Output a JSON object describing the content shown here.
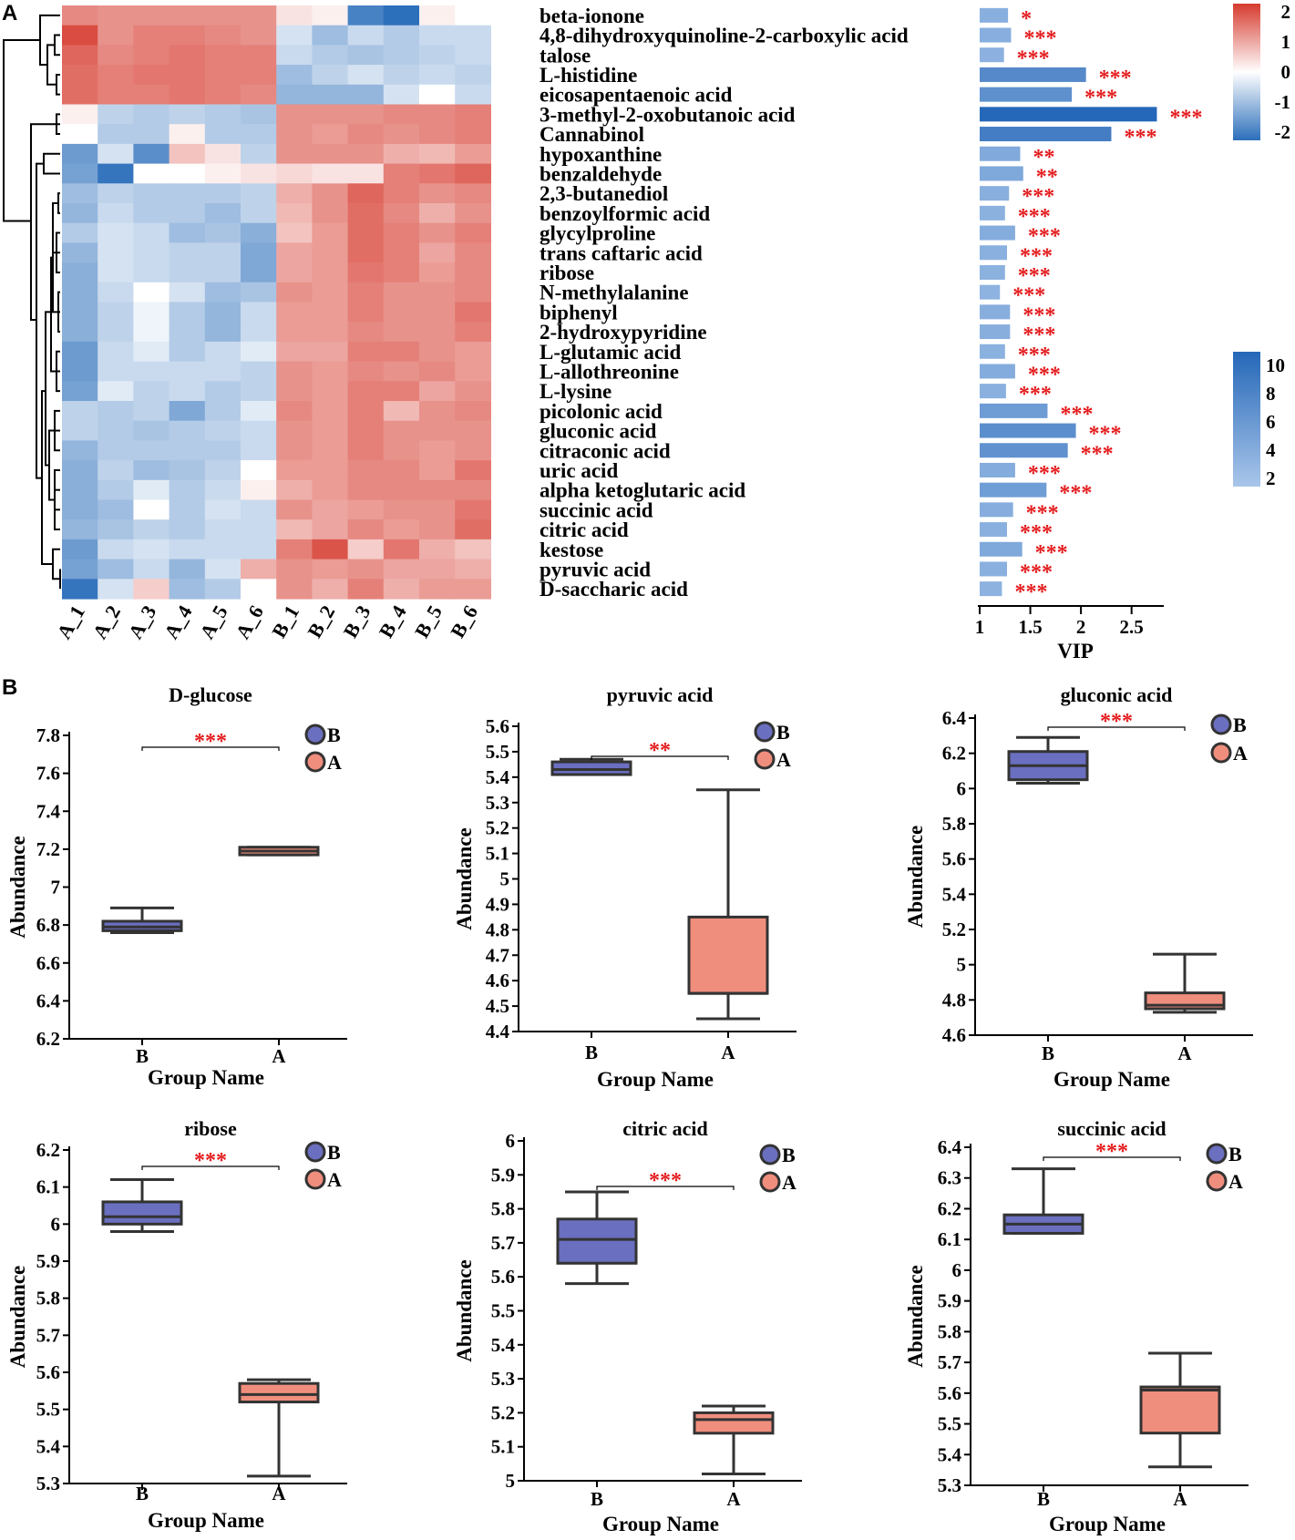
{
  "figure": {
    "panel_a_label": "A",
    "panel_b_label": "B"
  },
  "chart_data": [
    {
      "type": "heatmap",
      "samples": [
        "A_1",
        "A_2",
        "A_3",
        "A_4",
        "A_5",
        "A_6",
        "B_1",
        "B_2",
        "B_3",
        "B_4",
        "B_5",
        "B_6"
      ],
      "rows": [
        {
          "name": "beta-ionone",
          "values": [
            1.1,
            1.0,
            1.0,
            1.0,
            1.0,
            1.0,
            0.2,
            0.1,
            -1.7,
            -2.0,
            0.1,
            0.0
          ],
          "vip": 1.28,
          "sig": "*"
        },
        {
          "name": "4,8-dihydroxyquinoline-2-carboxylic acid",
          "values": [
            1.8,
            1.0,
            1.2,
            1.2,
            1.1,
            1.0,
            -0.3,
            -0.8,
            -0.4,
            -0.6,
            -0.4,
            -0.4
          ],
          "vip": 1.31,
          "sig": "***"
        },
        {
          "name": "talose",
          "values": [
            1.5,
            1.1,
            1.2,
            1.3,
            1.2,
            1.2,
            -0.4,
            -0.6,
            -0.7,
            -0.6,
            -0.5,
            -0.4
          ],
          "vip": 1.24,
          "sig": "***"
        },
        {
          "name": "L-histidine",
          "values": [
            1.4,
            1.2,
            1.3,
            1.3,
            1.2,
            1.2,
            -0.8,
            -0.5,
            -0.3,
            -0.5,
            -0.4,
            -0.5
          ],
          "vip": 2.05,
          "sig": "***"
        },
        {
          "name": "eicosapentaenoic acid",
          "values": [
            1.4,
            1.2,
            1.2,
            1.3,
            1.2,
            1.1,
            -0.9,
            -0.9,
            -0.9,
            -0.3,
            0.0,
            -0.4
          ],
          "vip": 1.91,
          "sig": "***"
        },
        {
          "name": "3-methyl-2-oxobutanoic acid",
          "values": [
            0.1,
            -0.5,
            -0.6,
            -0.5,
            -0.6,
            -0.7,
            1.0,
            1.0,
            1.0,
            1.1,
            1.1,
            1.2
          ],
          "vip": 2.75,
          "sig": "***"
        },
        {
          "name": "Cannabinol",
          "values": [
            0.0,
            -0.6,
            -0.6,
            0.1,
            -0.6,
            -0.6,
            1.0,
            0.9,
            1.1,
            1.0,
            1.1,
            1.2
          ],
          "vip": 2.3,
          "sig": "***"
        },
        {
          "name": "hypoxanthine",
          "values": [
            -1.3,
            -0.3,
            -1.5,
            0.5,
            0.2,
            -0.5,
            1.0,
            1.0,
            1.0,
            0.7,
            0.6,
            0.9
          ],
          "vip": 1.4,
          "sig": "**"
        },
        {
          "name": "benzaldehyde",
          "values": [
            -1.2,
            -1.9,
            0.0,
            0.0,
            0.1,
            0.2,
            0.3,
            0.2,
            0.2,
            1.2,
            1.3,
            1.5
          ],
          "vip": 1.43,
          "sig": "**"
        },
        {
          "name": "2,3-butanediol",
          "values": [
            -0.8,
            -0.5,
            -0.6,
            -0.6,
            -0.6,
            -0.5,
            0.7,
            1.0,
            1.5,
            1.2,
            1.0,
            1.1
          ],
          "vip": 1.29,
          "sig": "***"
        },
        {
          "name": "benzoylformic acid",
          "values": [
            -0.9,
            -0.4,
            -0.6,
            -0.6,
            -0.8,
            -0.5,
            0.6,
            1.0,
            1.4,
            1.1,
            0.7,
            1.0
          ],
          "vip": 1.25,
          "sig": "***"
        },
        {
          "name": "glycylproline",
          "values": [
            -0.6,
            -0.3,
            -0.4,
            -0.8,
            -0.7,
            -1.0,
            0.5,
            0.9,
            1.4,
            1.2,
            1.0,
            1.2
          ],
          "vip": 1.35,
          "sig": "***"
        },
        {
          "name": "trans caftaric acid",
          "values": [
            -0.9,
            -0.3,
            -0.4,
            -0.5,
            -0.5,
            -1.1,
            0.8,
            0.9,
            1.4,
            1.2,
            0.8,
            1.1
          ],
          "vip": 1.27,
          "sig": "***"
        },
        {
          "name": "ribose",
          "values": [
            -1.0,
            -0.3,
            -0.4,
            -0.5,
            -0.5,
            -1.1,
            0.8,
            0.9,
            1.3,
            1.2,
            0.9,
            1.1
          ],
          "vip": 1.25,
          "sig": "***"
        },
        {
          "name": "N-methylalanine",
          "values": [
            -1.0,
            -0.4,
            0.0,
            -0.3,
            -0.8,
            -0.7,
            1.0,
            0.9,
            1.2,
            1.0,
            1.0,
            1.1
          ],
          "vip": 1.2,
          "sig": "***"
        },
        {
          "name": "biphenyl",
          "values": [
            -1.0,
            -0.5,
            -0.1,
            -0.6,
            -0.9,
            -0.4,
            0.9,
            0.9,
            1.2,
            1.0,
            1.0,
            1.3
          ],
          "vip": 1.3,
          "sig": "***"
        },
        {
          "name": "2-hydroxypyridine",
          "values": [
            -1.0,
            -0.5,
            -0.1,
            -0.6,
            -0.9,
            -0.4,
            0.9,
            0.9,
            1.1,
            1.0,
            1.0,
            1.2
          ],
          "vip": 1.3,
          "sig": "***"
        },
        {
          "name": "L-glutamic acid",
          "values": [
            -1.3,
            -0.4,
            -0.2,
            -0.6,
            -0.4,
            -0.2,
            0.8,
            0.8,
            1.2,
            1.2,
            1.0,
            0.9
          ],
          "vip": 1.25,
          "sig": "***"
        },
        {
          "name": "L-allothreonine",
          "values": [
            -1.3,
            -0.4,
            -0.4,
            -0.4,
            -0.4,
            -0.5,
            1.0,
            0.9,
            1.1,
            1.0,
            1.1,
            0.9
          ],
          "vip": 1.35,
          "sig": "***"
        },
        {
          "name": "L-lysine",
          "values": [
            -1.2,
            -0.2,
            -0.5,
            -0.4,
            -0.6,
            -0.5,
            1.0,
            0.9,
            1.2,
            1.2,
            0.8,
            1.0
          ],
          "vip": 1.26,
          "sig": "***"
        },
        {
          "name": "picolonic acid",
          "values": [
            -0.5,
            -0.6,
            -0.5,
            -1.1,
            -0.6,
            -0.2,
            1.1,
            0.9,
            1.2,
            0.6,
            1.0,
            1.1
          ],
          "vip": 1.67,
          "sig": "***"
        },
        {
          "name": "gluconic acid",
          "values": [
            -0.5,
            -0.6,
            -0.7,
            -0.6,
            -0.5,
            -0.4,
            1.0,
            0.9,
            1.2,
            1.0,
            1.0,
            1.0
          ],
          "vip": 1.95,
          "sig": "***"
        },
        {
          "name": "citraconic acid",
          "values": [
            -0.9,
            -0.6,
            -0.6,
            -0.6,
            -0.6,
            -0.4,
            1.0,
            0.9,
            1.2,
            1.0,
            0.9,
            1.0
          ],
          "vip": 1.87,
          "sig": "***"
        },
        {
          "name": "uric acid",
          "values": [
            -1.0,
            -0.5,
            -0.8,
            -0.7,
            -0.5,
            0.0,
            0.9,
            0.9,
            1.1,
            1.1,
            0.9,
            1.3
          ],
          "vip": 1.35,
          "sig": "***"
        },
        {
          "name": "alpha ketoglutaric acid",
          "values": [
            -1.0,
            -0.6,
            -0.2,
            -0.6,
            -0.4,
            0.1,
            0.7,
            0.9,
            1.1,
            1.1,
            1.1,
            1.1
          ],
          "vip": 1.66,
          "sig": "***"
        },
        {
          "name": "succinic acid",
          "values": [
            -1.0,
            -0.8,
            0.0,
            -0.6,
            -0.3,
            -0.4,
            1.0,
            0.8,
            0.9,
            1.0,
            1.0,
            1.3
          ],
          "vip": 1.33,
          "sig": "***"
        },
        {
          "name": "citric acid",
          "values": [
            -0.9,
            -0.7,
            -0.5,
            -0.6,
            -0.4,
            -0.4,
            0.6,
            0.8,
            1.1,
            0.9,
            1.0,
            1.4
          ],
          "vip": 1.27,
          "sig": "***"
        },
        {
          "name": "kestose",
          "values": [
            -1.3,
            -0.4,
            -0.3,
            -0.4,
            -0.4,
            -0.4,
            1.2,
            1.7,
            0.4,
            1.3,
            0.7,
            0.5
          ],
          "vip": 1.42,
          "sig": "***"
        },
        {
          "name": "pyruvic acid",
          "values": [
            -1.2,
            -0.8,
            -0.4,
            -0.9,
            -0.3,
            0.7,
            1.0,
            0.9,
            1.0,
            0.8,
            0.8,
            0.7
          ],
          "vip": 1.27,
          "sig": "***"
        },
        {
          "name": "D-saccharic acid",
          "values": [
            -1.9,
            -0.3,
            0.4,
            -0.8,
            -0.6,
            0.0,
            1.0,
            0.7,
            1.2,
            0.7,
            0.9,
            0.9
          ],
          "vip": 1.22,
          "sig": "***"
        }
      ],
      "scale_legend": {
        "ticks": [
          "2",
          "1",
          "0",
          "-1",
          "-2"
        ],
        "range": [
          -2,
          2
        ]
      },
      "vip_legend": {
        "ticks": [
          "10",
          "8",
          "6",
          "4",
          "2"
        ],
        "range": [
          1,
          11
        ]
      },
      "vip_axis": {
        "ticks": [
          "1",
          "1.5",
          "2",
          "2.5"
        ],
        "range": [
          1,
          2.8
        ],
        "label": "VIP"
      }
    },
    {
      "type": "box",
      "title": "D-glucose",
      "xlabel": "Group Name",
      "ylabel": "Abundance",
      "categories": [
        "B",
        "A"
      ],
      "ylim": [
        6.2,
        7.8
      ],
      "yticks": [
        "6.2",
        "6.4",
        "6.6",
        "6.8",
        "7",
        "7.2",
        "7.4",
        "7.6",
        "7.8"
      ],
      "boxes": [
        {
          "group": "B",
          "min": 6.76,
          "q1": 6.77,
          "median": 6.79,
          "q3": 6.82,
          "max": 6.89,
          "color": "#6a6fbf"
        },
        {
          "group": "A",
          "min": 7.17,
          "q1": 7.17,
          "median": 7.19,
          "q3": 7.21,
          "max": 7.21,
          "color": "#f08e7e"
        }
      ],
      "significance": "***",
      "legend": [
        "B",
        "A"
      ]
    },
    {
      "type": "box",
      "title": "pyruvic acid",
      "xlabel": "Group Name",
      "ylabel": "Abundance",
      "categories": [
        "B",
        "A"
      ],
      "ylim": [
        4.4,
        5.6
      ],
      "yticks": [
        "4.4",
        "4.5",
        "4.6",
        "4.7",
        "4.8",
        "4.9",
        "5",
        "5.1",
        "5.2",
        "5.3",
        "5.4",
        "5.5",
        "5.6"
      ],
      "boxes": [
        {
          "group": "B",
          "min": 5.41,
          "q1": 5.41,
          "median": 5.43,
          "q3": 5.46,
          "max": 5.47,
          "color": "#6a6fbf"
        },
        {
          "group": "A",
          "min": 4.45,
          "q1": 4.55,
          "median": 4.55,
          "q3": 4.85,
          "max": 5.35,
          "color": "#f08e7e"
        }
      ],
      "significance": "**",
      "legend": [
        "B",
        "A"
      ]
    },
    {
      "type": "box",
      "title": "gluconic acid",
      "xlabel": "Group Name",
      "ylabel": "Abundance",
      "categories": [
        "B",
        "A"
      ],
      "ylim": [
        4.6,
        6.4
      ],
      "yticks": [
        "4.6",
        "4.8",
        "5",
        "5.2",
        "5.4",
        "5.6",
        "5.8",
        "6",
        "6.2",
        "6.4"
      ],
      "boxes": [
        {
          "group": "B",
          "min": 6.03,
          "q1": 6.05,
          "median": 6.13,
          "q3": 6.21,
          "max": 6.29,
          "color": "#6a6fbf"
        },
        {
          "group": "A",
          "min": 4.73,
          "q1": 4.75,
          "median": 4.77,
          "q3": 4.84,
          "max": 5.06,
          "color": "#f08e7e"
        }
      ],
      "significance": "***",
      "legend": [
        "B",
        "A"
      ]
    },
    {
      "type": "box",
      "title": "ribose",
      "xlabel": "Group Name",
      "ylabel": "Abundance",
      "categories": [
        "B",
        "A"
      ],
      "ylim": [
        5.3,
        6.2
      ],
      "yticks": [
        "5.3",
        "5.4",
        "5.5",
        "5.6",
        "5.7",
        "5.8",
        "5.9",
        "6",
        "6.1",
        "6.2"
      ],
      "boxes": [
        {
          "group": "B",
          "min": 5.98,
          "q1": 6.0,
          "median": 6.02,
          "q3": 6.06,
          "max": 6.12,
          "color": "#6a6fbf"
        },
        {
          "group": "A",
          "min": 5.32,
          "q1": 5.52,
          "median": 5.54,
          "q3": 5.57,
          "max": 5.58,
          "color": "#f08e7e"
        }
      ],
      "significance": "***",
      "legend": [
        "B",
        "A"
      ]
    },
    {
      "type": "box",
      "title": "citric acid",
      "xlabel": "Group Name",
      "ylabel": "Abundance",
      "categories": [
        "B",
        "A"
      ],
      "ylim": [
        5.0,
        6.0
      ],
      "yticks": [
        "5",
        "5.1",
        "5.2",
        "5.3",
        "5.4",
        "5.5",
        "5.6",
        "5.7",
        "5.8",
        "5.9",
        "6"
      ],
      "boxes": [
        {
          "group": "B",
          "min": 5.58,
          "q1": 5.64,
          "median": 5.71,
          "q3": 5.77,
          "max": 5.85,
          "color": "#6a6fbf"
        },
        {
          "group": "A",
          "min": 5.02,
          "q1": 5.14,
          "median": 5.18,
          "q3": 5.2,
          "max": 5.22,
          "color": "#f08e7e"
        }
      ],
      "significance": "***",
      "legend": [
        "B",
        "A"
      ]
    },
    {
      "type": "box",
      "title": "succinic acid",
      "xlabel": "Group Name",
      "ylabel": "Abundance",
      "categories": [
        "B",
        "A"
      ],
      "ylim": [
        5.3,
        6.4
      ],
      "yticks": [
        "5.3",
        "5.4",
        "5.5",
        "5.6",
        "5.7",
        "5.8",
        "5.9",
        "6",
        "6.1",
        "6.2",
        "6.3",
        "6.4"
      ],
      "boxes": [
        {
          "group": "B",
          "min": 6.12,
          "q1": 6.12,
          "median": 6.15,
          "q3": 6.18,
          "max": 6.33,
          "color": "#6a6fbf"
        },
        {
          "group": "A",
          "min": 5.36,
          "q1": 5.47,
          "median": 5.61,
          "q3": 5.62,
          "max": 5.73,
          "color": "#f08e7e"
        }
      ],
      "significance": "***",
      "legend": [
        "B",
        "A"
      ]
    }
  ]
}
